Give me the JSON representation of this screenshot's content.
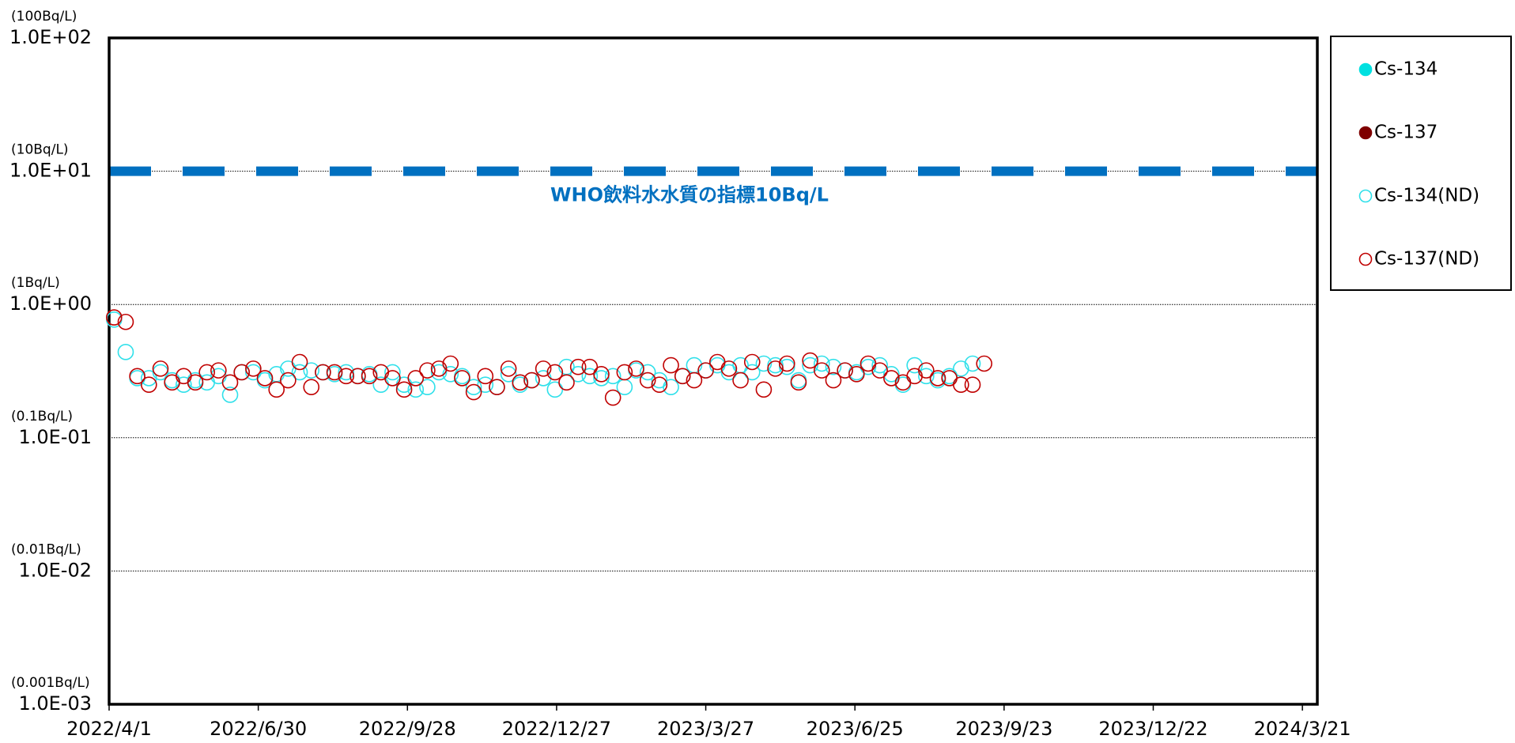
{
  "chart_data": {
    "type": "scatter",
    "x": [
      "2022/4/4",
      "2022/4/11",
      "2022/4/18",
      "2022/4/25",
      "2022/5/2",
      "2022/5/9",
      "2022/5/16",
      "2022/5/23",
      "2022/5/30",
      "2022/6/6",
      "2022/6/13",
      "2022/6/20",
      "2022/6/27",
      "2022/7/4",
      "2022/7/11",
      "2022/7/18",
      "2022/7/25",
      "2022/8/1",
      "2022/8/8",
      "2022/8/15",
      "2022/8/22",
      "2022/8/29",
      "2022/9/5",
      "2022/9/12",
      "2022/9/19",
      "2022/9/26",
      "2022/10/3",
      "2022/10/10",
      "2022/10/17",
      "2022/10/24",
      "2022/10/31",
      "2022/11/7",
      "2022/11/14",
      "2022/11/21",
      "2022/11/28",
      "2022/12/5",
      "2022/12/12",
      "2022/12/19",
      "2022/12/26",
      "2023/1/2",
      "2023/1/9",
      "2023/1/16",
      "2023/1/23",
      "2023/1/30",
      "2023/2/6",
      "2023/2/13",
      "2023/2/20",
      "2023/2/27",
      "2023/3/6",
      "2023/3/13",
      "2023/3/20",
      "2023/3/27",
      "2023/4/3",
      "2023/4/10",
      "2023/4/17",
      "2023/4/24",
      "2023/5/1",
      "2023/5/8",
      "2023/5/15",
      "2023/5/22",
      "2023/5/29",
      "2023/6/5",
      "2023/6/12",
      "2023/6/19",
      "2023/6/26",
      "2023/7/3",
      "2023/7/10",
      "2023/7/17",
      "2023/7/24",
      "2023/7/31",
      "2023/8/7",
      "2023/8/14",
      "2023/8/21",
      "2023/8/28",
      "2023/9/4",
      "2023/9/11"
    ],
    "series": [
      {
        "name": "Cs-134",
        "color": "#00e0e0",
        "marker": "filled",
        "values": [
          null,
          null,
          null,
          null,
          null,
          null,
          null,
          null,
          null,
          null,
          null,
          null,
          null,
          null,
          null,
          null,
          null,
          null,
          null,
          null,
          null,
          null,
          null,
          null,
          null,
          null,
          null,
          null,
          null,
          null,
          null,
          null,
          null,
          null,
          null,
          null,
          null,
          null,
          null,
          null,
          null,
          null,
          null,
          null,
          null,
          null,
          null,
          null,
          null,
          null,
          null,
          null,
          null,
          null,
          null,
          null,
          null,
          null,
          null,
          null,
          null,
          null,
          null,
          null,
          null,
          null,
          null,
          null,
          null,
          null,
          null,
          null,
          null,
          null,
          null,
          null
        ]
      },
      {
        "name": "Cs-137",
        "color": "#7f0000",
        "marker": "filled",
        "values": [
          null,
          null,
          null,
          null,
          null,
          null,
          null,
          null,
          null,
          null,
          null,
          null,
          null,
          null,
          null,
          null,
          null,
          null,
          null,
          null,
          null,
          null,
          null,
          null,
          null,
          null,
          null,
          null,
          null,
          null,
          null,
          null,
          null,
          null,
          null,
          null,
          null,
          null,
          null,
          null,
          null,
          null,
          null,
          null,
          null,
          null,
          null,
          null,
          null,
          null,
          null,
          null,
          null,
          null,
          null,
          null,
          null,
          null,
          null,
          null,
          null,
          null,
          null,
          null,
          null,
          null,
          null,
          null,
          null,
          null,
          null,
          null,
          null,
          null,
          null,
          null
        ]
      },
      {
        "name": "Cs-134(ND)",
        "color": "#2fe0ea",
        "marker": "open",
        "values": [
          0.77,
          0.44,
          0.28,
          0.28,
          0.31,
          0.27,
          0.25,
          0.27,
          0.26,
          0.29,
          0.21,
          0.31,
          0.31,
          0.27,
          0.3,
          0.33,
          0.31,
          0.32,
          0.31,
          0.3,
          0.31,
          0.29,
          0.3,
          0.25,
          0.31,
          0.25,
          0.23,
          0.24,
          0.31,
          0.3,
          0.29,
          0.24,
          0.25,
          0.24,
          0.3,
          0.25,
          0.27,
          0.28,
          0.23,
          0.34,
          0.3,
          0.29,
          0.28,
          0.29,
          0.24,
          0.32,
          0.31,
          0.27,
          0.24,
          0.29,
          0.35,
          0.32,
          0.35,
          0.31,
          0.35,
          0.31,
          0.36,
          0.35,
          0.34,
          0.27,
          0.35,
          0.36,
          0.34,
          0.32,
          0.31,
          0.34,
          0.35,
          0.3,
          0.25,
          0.35,
          0.29,
          0.27,
          0.29,
          0.33,
          0.36,
          null
        ]
      },
      {
        "name": "Cs-137(ND)",
        "color": "#c00000",
        "marker": "open",
        "values": [
          0.8,
          0.74,
          0.29,
          0.25,
          0.33,
          0.26,
          0.29,
          0.26,
          0.31,
          0.32,
          0.26,
          0.31,
          0.33,
          0.28,
          0.23,
          0.27,
          0.37,
          0.24,
          0.31,
          0.31,
          0.29,
          0.29,
          0.29,
          0.31,
          0.28,
          0.23,
          0.28,
          0.32,
          0.33,
          0.36,
          0.28,
          0.22,
          0.29,
          0.24,
          0.33,
          0.26,
          0.27,
          0.33,
          0.31,
          0.26,
          0.34,
          0.34,
          0.3,
          0.2,
          0.31,
          0.33,
          0.27,
          0.25,
          0.35,
          0.29,
          0.27,
          0.32,
          0.37,
          0.33,
          0.27,
          0.37,
          0.23,
          0.33,
          0.36,
          0.26,
          0.38,
          0.32,
          0.27,
          0.32,
          0.3,
          0.36,
          0.32,
          0.28,
          0.26,
          0.29,
          0.32,
          0.28,
          0.28,
          0.25,
          0.25,
          0.36
        ]
      }
    ],
    "xlim": [
      "2022/4/1",
      "2024/3/30"
    ],
    "xticks": [
      "2022/4/1",
      "2022/6/30",
      "2022/9/28",
      "2022/12/27",
      "2023/3/27",
      "2023/6/25",
      "2023/9/23",
      "2023/12/22",
      "2024/3/21"
    ],
    "ylim": [
      0.001,
      100
    ],
    "log_y": true,
    "grid": true,
    "legend": "right",
    "yticks": [
      {
        "value": 0.001,
        "label": "1.0E-03"
      },
      {
        "value": 0.01,
        "label": "1.0E-02"
      },
      {
        "value": 0.1,
        "label": "1.0E-01"
      },
      {
        "value": 1,
        "label": "1.0E+00"
      },
      {
        "value": 10,
        "label": "1.0E+01"
      },
      {
        "value": 100,
        "label": "1.0E+02"
      }
    ],
    "ytick_units": [
      "(0.001Bq/L)",
      "(0.01Bq/L)",
      "(0.1Bq/L)",
      "(1Bq/L)",
      "(10Bq/L)",
      "(100Bq/L)"
    ],
    "reference_line": {
      "value": 10,
      "label": "WHO飲料水水質の指標10Bq/L",
      "color": "#0070c0"
    }
  }
}
